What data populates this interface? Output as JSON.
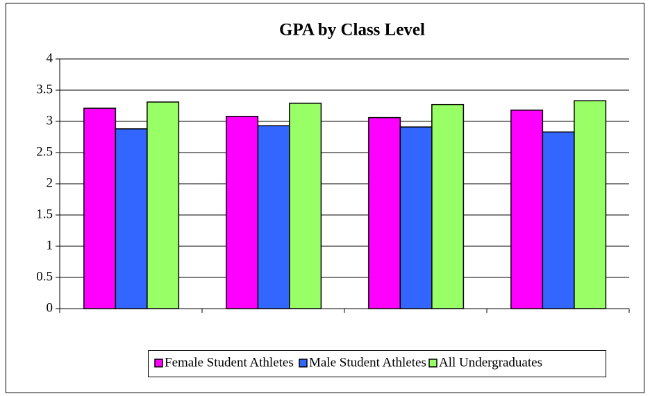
{
  "chart_data": {
    "type": "bar",
    "title": "GPA by Class Level",
    "categories": [
      null,
      null,
      null,
      null
    ],
    "series": [
      {
        "name": "Female Student Athletes",
        "color": "#ff00ff",
        "values": [
          3.21,
          3.08,
          3.06,
          3.18
        ]
      },
      {
        "name": "Male Student Athletes",
        "color": "#3366ff",
        "values": [
          2.88,
          2.93,
          2.91,
          2.83
        ]
      },
      {
        "name": "All Undergraduates",
        "color": "#99ff66",
        "values": [
          3.31,
          3.29,
          3.27,
          3.33
        ]
      }
    ],
    "ylim": [
      0,
      4
    ],
    "yticks": [
      0,
      0.5,
      1,
      1.5,
      2,
      2.5,
      3,
      3.5,
      4
    ],
    "grid": true,
    "legend": "bottom"
  }
}
